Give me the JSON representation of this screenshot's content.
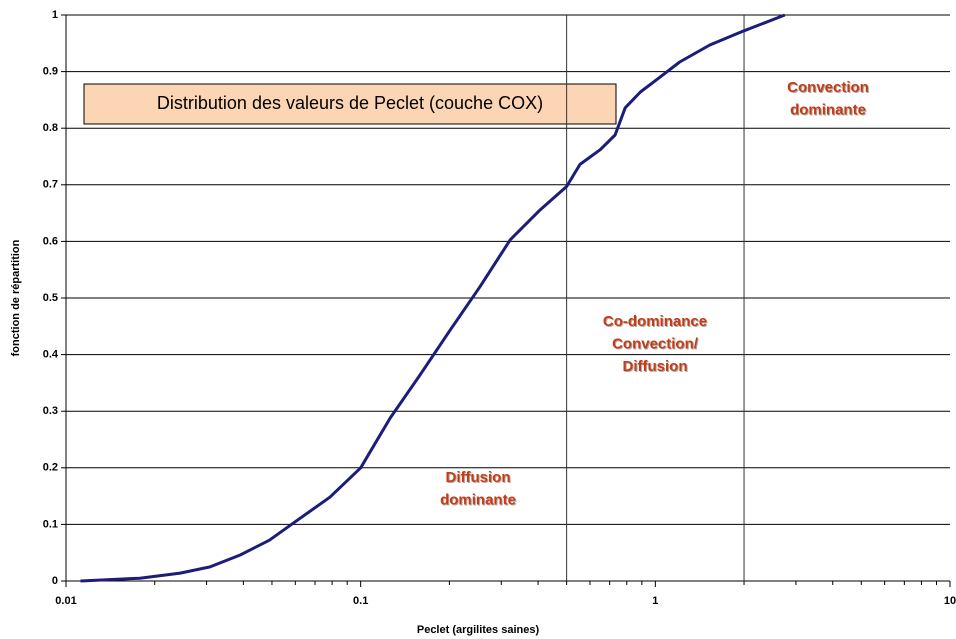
{
  "chart_data": {
    "type": "line",
    "title": "Distribution des valeurs de Peclet (couche COX)",
    "x_label": "Peclet (argilites saines)",
    "y_label": "fonction de répartition",
    "x_scale": "log",
    "xlim": [
      0.01,
      10
    ],
    "xticks": [
      0.01,
      0.1,
      1,
      10
    ],
    "ylim": [
      0,
      1
    ],
    "yticks": [
      0,
      0.1,
      0.2,
      0.3,
      0.4,
      0.5,
      0.6,
      0.7,
      0.8,
      0.9,
      1
    ],
    "grid": true,
    "vlines": [
      0.5,
      2
    ],
    "series": [
      {
        "color": "#1c1c7a",
        "x": [
          0.0112,
          0.0178,
          0.0244,
          0.0308,
          0.039,
          0.049,
          0.062,
          0.0786,
          0.1,
          0.126,
          0.159,
          0.201,
          0.254,
          0.322,
          0.407,
          0.5,
          0.555,
          0.65,
          0.73,
          0.79,
          0.89,
          1.03,
          1.21,
          1.53,
          2.0,
          2.75
        ],
        "values": [
          0,
          0.005,
          0.014,
          0.025,
          0.046,
          0.072,
          0.11,
          0.148,
          0.2,
          0.288,
          0.364,
          0.443,
          0.52,
          0.603,
          0.656,
          0.697,
          0.736,
          0.762,
          0.788,
          0.836,
          0.864,
          0.889,
          0.917,
          0.947,
          0.972,
          1.0
        ]
      }
    ],
    "annotations": [
      {
        "lines": [
          "Diffusion",
          "dominante"
        ]
      },
      {
        "lines": [
          "Co-dominance",
          "Convection/",
          "Diffusion"
        ]
      },
      {
        "lines": [
          "Convection",
          "dominante"
        ]
      }
    ]
  }
}
